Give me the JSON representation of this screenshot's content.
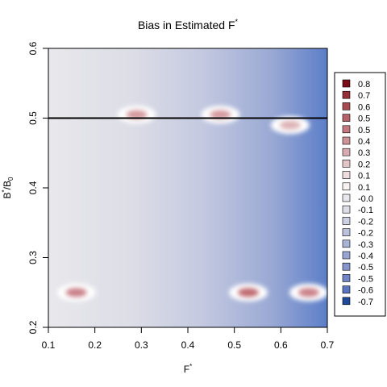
{
  "chart_data": {
    "type": "heatmap",
    "title": "Bias in Estimated F*",
    "xlabel": "F*",
    "ylabel": "B*/B0",
    "xlim": [
      0.1,
      0.7
    ],
    "ylim": [
      0.2,
      0.6
    ],
    "x_ticks": [
      "0.1",
      "0.2",
      "0.3",
      "0.4",
      "0.5",
      "0.6",
      "0.7"
    ],
    "y_ticks": [
      "0.2",
      "0.3",
      "0.4",
      "0.5",
      "0.6"
    ],
    "reference_line": {
      "y": 0.5
    },
    "background_gradient": {
      "x_start": 0.1,
      "value_start": 0.0,
      "x_end": 0.7,
      "value_end": -0.6
    },
    "hotspots": [
      {
        "x": 0.16,
        "y": 0.25,
        "value": 0.4
      },
      {
        "x": 0.29,
        "y": 0.505,
        "value": 0.3
      },
      {
        "x": 0.47,
        "y": 0.505,
        "value": 0.3
      },
      {
        "x": 0.53,
        "y": 0.25,
        "value": 0.5
      },
      {
        "x": 0.66,
        "y": 0.25,
        "value": 0.4
      },
      {
        "x": 0.62,
        "y": 0.49,
        "value": 0.2
      }
    ],
    "legend": {
      "placement": "right",
      "entries": [
        {
          "label": "0.8",
          "color": "#7a0c18"
        },
        {
          "label": "0.7",
          "color": "#962e37"
        },
        {
          "label": "0.6",
          "color": "#a84a52"
        },
        {
          "label": "0.5",
          "color": "#b6626a"
        },
        {
          "label": "0.5",
          "color": "#c27a80"
        },
        {
          "label": "0.4",
          "color": "#cd9398"
        },
        {
          "label": "0.3",
          "color": "#d8acb0"
        },
        {
          "label": "0.2",
          "color": "#e3c5c8"
        },
        {
          "label": "0.1",
          "color": "#eedcde"
        },
        {
          "label": "0.1",
          "color": "#f8f2f2"
        },
        {
          "label": "-0.0",
          "color": "#e8e8ec"
        },
        {
          "label": "-0.1",
          "color": "#dcdde6"
        },
        {
          "label": "-0.2",
          "color": "#ccd0e2"
        },
        {
          "label": "-0.2",
          "color": "#bcc2dd"
        },
        {
          "label": "-0.3",
          "color": "#abb4d8"
        },
        {
          "label": "-0.4",
          "color": "#98a5d3"
        },
        {
          "label": "-0.5",
          "color": "#8596cd"
        },
        {
          "label": "-0.5",
          "color": "#7086c7"
        },
        {
          "label": "-0.6",
          "color": "#5b76c0"
        },
        {
          "label": "-0.7",
          "color": "#1f4a9a"
        }
      ]
    }
  }
}
